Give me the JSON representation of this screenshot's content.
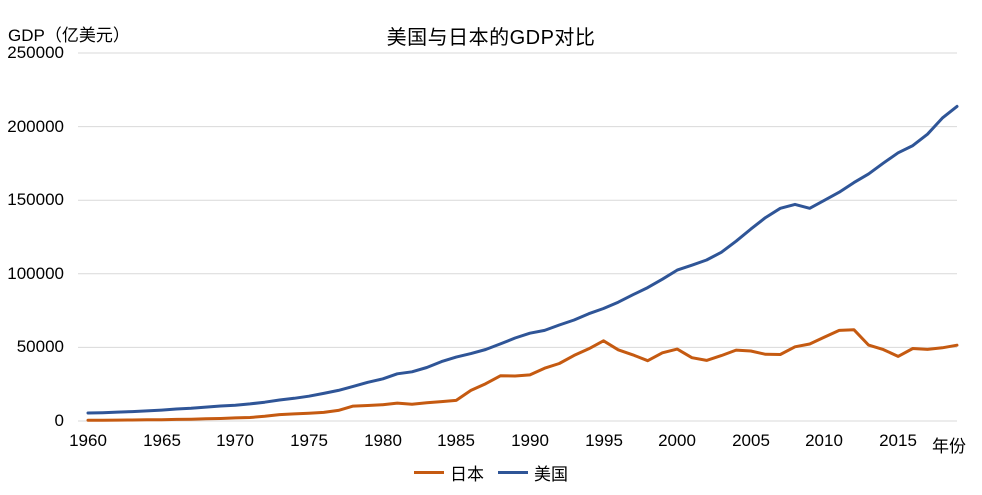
{
  "chart_data": {
    "type": "line",
    "title": "美国与日本的GDP对比",
    "ylabel": "GDP（亿美元）",
    "xlabel": "年份",
    "ylim": [
      0,
      250000
    ],
    "y_ticks": [
      0,
      50000,
      100000,
      150000,
      200000,
      250000
    ],
    "x_ticks": [
      1960,
      1965,
      1970,
      1975,
      1980,
      1985,
      1990,
      1995,
      2000,
      2005,
      2010,
      2015
    ],
    "grid": "horizontal",
    "grid_color": "#d9d9d9",
    "text_color": "#000000",
    "background_color": "#ffffff",
    "legend_position": "bottom",
    "x": [
      1960,
      1961,
      1962,
      1963,
      1964,
      1965,
      1966,
      1967,
      1968,
      1969,
      1970,
      1971,
      1972,
      1973,
      1974,
      1975,
      1976,
      1977,
      1978,
      1979,
      1980,
      1981,
      1982,
      1983,
      1984,
      1985,
      1986,
      1987,
      1988,
      1989,
      1990,
      1991,
      1992,
      1993,
      1994,
      1995,
      1996,
      1997,
      1998,
      1999,
      2000,
      2001,
      2002,
      2003,
      2004,
      2005,
      2006,
      2007,
      2008,
      2009,
      2010,
      2011,
      2012,
      2013,
      2014,
      2015,
      2016,
      2017,
      2018,
      2019
    ],
    "series": [
      {
        "id": "japan",
        "name": "日本",
        "color": "#C55A11",
        "values": [
          443,
          535,
          607,
          695,
          818,
          910,
          1056,
          1238,
          1466,
          1722,
          2126,
          2402,
          3180,
          4321,
          4796,
          5215,
          5862,
          7211,
          10136,
          10550,
          11054,
          12190,
          11345,
          12433,
          13184,
          13989,
          20788,
          25325,
          30717,
          30545,
          31329,
          35842,
          39088,
          44543,
          49070,
          54491,
          48337,
          44925,
          40988,
          46358,
          48873,
          43035,
          41151,
          44456,
          48152,
          47554,
          45305,
          45153,
          50379,
          52314,
          57001,
          61575,
          62032,
          51557,
          48504,
          43895,
          49267,
          48669,
          49717,
          51487
        ]
      },
      {
        "id": "usa",
        "name": "美国",
        "color": "#2F5597",
        "values": [
          5433,
          5633,
          6051,
          6386,
          6858,
          7437,
          8150,
          8617,
          9425,
          10199,
          10733,
          11648,
          12791,
          14254,
          15452,
          16849,
          18734,
          20818,
          23516,
          26273,
          28573,
          32070,
          33438,
          36340,
          40376,
          43390,
          45796,
          48552,
          52364,
          56416,
          59631,
          61581,
          65203,
          68586,
          72872,
          76398,
          80731,
          85776,
          90628,
          96312,
          102523,
          105819,
          109364,
          114582,
          122137,
          130366,
          138146,
          144519,
          147128,
          144489,
          149921,
          155426,
          161970,
          167848,
          175218,
          182193,
          187072,
          194854,
          205802,
          213726
        ]
      }
    ]
  }
}
